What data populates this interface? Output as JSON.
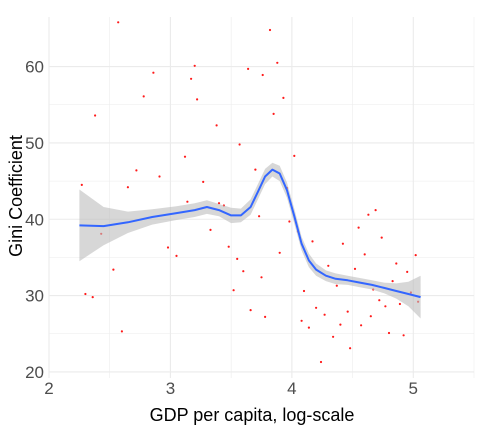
{
  "chart_data": {
    "type": "scatter",
    "title": "",
    "xlabel": "GDP per capita, log-scale",
    "ylabel": "Gini Coefficient",
    "xlim": [
      2.0,
      5.5
    ],
    "ylim": [
      19.2,
      66.5
    ],
    "xticks": [
      2,
      3,
      4,
      5
    ],
    "yticks": [
      20,
      30,
      40,
      50,
      60
    ],
    "xtick_labels": [
      "2",
      "3",
      "4",
      "5"
    ],
    "ytick_labels": [
      "20",
      "30",
      "40",
      "50",
      "60"
    ],
    "grid": true,
    "legend": "none",
    "colors": {
      "points": "#ff1a1a",
      "smooth_line": "#3366ff",
      "confidence_band": "#bdbdbd",
      "grid": "#ebebeb",
      "text": "#4d4d4d"
    },
    "series": [
      {
        "kind": "scatter",
        "points": [
          [
            2.27,
            44.5
          ],
          [
            2.3,
            30.2
          ],
          [
            2.36,
            29.8
          ],
          [
            2.43,
            38.1
          ],
          [
            2.38,
            53.6
          ],
          [
            2.57,
            65.8
          ],
          [
            2.53,
            33.4
          ],
          [
            2.6,
            25.3
          ],
          [
            2.65,
            44.2
          ],
          [
            2.72,
            46.4
          ],
          [
            2.78,
            56.1
          ],
          [
            2.86,
            59.2
          ],
          [
            2.91,
            45.6
          ],
          [
            2.98,
            36.3
          ],
          [
            3.05,
            35.2
          ],
          [
            3.12,
            48.2
          ],
          [
            3.17,
            58.4
          ],
          [
            3.2,
            60.1
          ],
          [
            3.14,
            42.3
          ],
          [
            3.22,
            55.7
          ],
          [
            3.27,
            44.9
          ],
          [
            3.33,
            38.6
          ],
          [
            3.38,
            52.3
          ],
          [
            3.44,
            41.8
          ],
          [
            3.48,
            36.4
          ],
          [
            3.52,
            30.7
          ],
          [
            3.57,
            49.8
          ],
          [
            3.6,
            33.2
          ],
          [
            3.64,
            59.7
          ],
          [
            3.66,
            28.1
          ],
          [
            3.7,
            46.5
          ],
          [
            3.73,
            40.4
          ],
          [
            3.76,
            58.9
          ],
          [
            3.78,
            27.2
          ],
          [
            3.82,
            64.8
          ],
          [
            3.85,
            53.8
          ],
          [
            3.88,
            60.5
          ],
          [
            3.9,
            35.6
          ],
          [
            3.93,
            55.9
          ],
          [
            3.96,
            44.1
          ],
          [
            3.98,
            39.7
          ],
          [
            4.02,
            48.3
          ],
          [
            4.05,
            38.4
          ],
          [
            4.08,
            26.7
          ],
          [
            4.1,
            30.6
          ],
          [
            4.14,
            25.8
          ],
          [
            4.17,
            37.1
          ],
          [
            4.2,
            28.4
          ],
          [
            4.24,
            21.3
          ],
          [
            4.27,
            27.5
          ],
          [
            4.3,
            33.9
          ],
          [
            4.34,
            24.6
          ],
          [
            4.37,
            31.3
          ],
          [
            4.4,
            26.2
          ],
          [
            4.42,
            36.8
          ],
          [
            4.46,
            27.9
          ],
          [
            4.48,
            23.1
          ],
          [
            4.52,
            33.5
          ],
          [
            4.55,
            38.9
          ],
          [
            4.57,
            26.1
          ],
          [
            4.6,
            35.4
          ],
          [
            4.63,
            40.6
          ],
          [
            4.65,
            27.3
          ],
          [
            4.67,
            30.8
          ],
          [
            4.69,
            41.2
          ],
          [
            4.72,
            29.4
          ],
          [
            4.74,
            37.6
          ],
          [
            4.77,
            28.6
          ],
          [
            4.8,
            25.1
          ],
          [
            4.83,
            31.9
          ],
          [
            4.86,
            34.2
          ],
          [
            4.89,
            28.9
          ],
          [
            4.92,
            24.8
          ],
          [
            4.95,
            33.1
          ],
          [
            4.98,
            30.4
          ],
          [
            5.02,
            35.3
          ],
          [
            5.04,
            29.2
          ],
          [
            3.4,
            42.1
          ],
          [
            3.55,
            34.8
          ],
          [
            3.75,
            32.4
          ]
        ]
      },
      {
        "kind": "smooth",
        "name": "",
        "points": [
          [
            2.25,
            39.2
          ],
          [
            2.45,
            39.1
          ],
          [
            2.65,
            39.6
          ],
          [
            2.85,
            40.3
          ],
          [
            3.05,
            40.8
          ],
          [
            3.2,
            41.2
          ],
          [
            3.3,
            41.6
          ],
          [
            3.4,
            41.2
          ],
          [
            3.5,
            40.5
          ],
          [
            3.58,
            40.5
          ],
          [
            3.66,
            41.6
          ],
          [
            3.72,
            43.6
          ],
          [
            3.78,
            45.6
          ],
          [
            3.84,
            46.5
          ],
          [
            3.9,
            46.0
          ],
          [
            3.96,
            43.8
          ],
          [
            4.02,
            40.4
          ],
          [
            4.08,
            36.8
          ],
          [
            4.14,
            34.6
          ],
          [
            4.2,
            33.4
          ],
          [
            4.28,
            32.6
          ],
          [
            4.36,
            32.2
          ],
          [
            4.46,
            32.0
          ],
          [
            4.56,
            31.7
          ],
          [
            4.66,
            31.4
          ],
          [
            4.76,
            31.0
          ],
          [
            4.86,
            30.6
          ],
          [
            4.96,
            30.2
          ],
          [
            5.06,
            29.8
          ]
        ],
        "lower": [
          [
            2.25,
            34.5
          ],
          [
            2.45,
            36.6
          ],
          [
            2.65,
            38.2
          ],
          [
            2.85,
            39.3
          ],
          [
            3.05,
            39.9
          ],
          [
            3.2,
            40.3
          ],
          [
            3.3,
            40.7
          ],
          [
            3.4,
            40.4
          ],
          [
            3.5,
            39.5
          ],
          [
            3.58,
            39.6
          ],
          [
            3.66,
            40.6
          ],
          [
            3.72,
            42.6
          ],
          [
            3.78,
            44.6
          ],
          [
            3.84,
            45.6
          ],
          [
            3.9,
            45.0
          ],
          [
            3.96,
            42.8
          ],
          [
            4.02,
            39.4
          ],
          [
            4.08,
            35.9
          ],
          [
            4.14,
            33.7
          ],
          [
            4.2,
            32.6
          ],
          [
            4.28,
            31.9
          ],
          [
            4.36,
            31.5
          ],
          [
            4.46,
            31.4
          ],
          [
            4.56,
            31.1
          ],
          [
            4.66,
            30.8
          ],
          [
            4.76,
            30.3
          ],
          [
            4.86,
            29.6
          ],
          [
            4.96,
            28.6
          ],
          [
            5.06,
            27.0
          ]
        ],
        "upper": [
          [
            2.25,
            43.9
          ],
          [
            2.45,
            41.6
          ],
          [
            2.65,
            41.0
          ],
          [
            2.85,
            41.3
          ],
          [
            3.05,
            41.7
          ],
          [
            3.2,
            42.1
          ],
          [
            3.3,
            42.5
          ],
          [
            3.4,
            42.0
          ],
          [
            3.5,
            41.5
          ],
          [
            3.58,
            41.4
          ],
          [
            3.66,
            42.6
          ],
          [
            3.72,
            44.6
          ],
          [
            3.78,
            46.6
          ],
          [
            3.84,
            47.4
          ],
          [
            3.9,
            47.0
          ],
          [
            3.96,
            44.8
          ],
          [
            4.02,
            41.4
          ],
          [
            4.08,
            37.7
          ],
          [
            4.14,
            35.5
          ],
          [
            4.2,
            34.2
          ],
          [
            4.28,
            33.3
          ],
          [
            4.36,
            32.9
          ],
          [
            4.46,
            32.6
          ],
          [
            4.56,
            32.3
          ],
          [
            4.66,
            32.0
          ],
          [
            4.76,
            31.7
          ],
          [
            4.86,
            31.6
          ],
          [
            4.96,
            31.8
          ],
          [
            5.06,
            32.6
          ]
        ]
      }
    ]
  }
}
